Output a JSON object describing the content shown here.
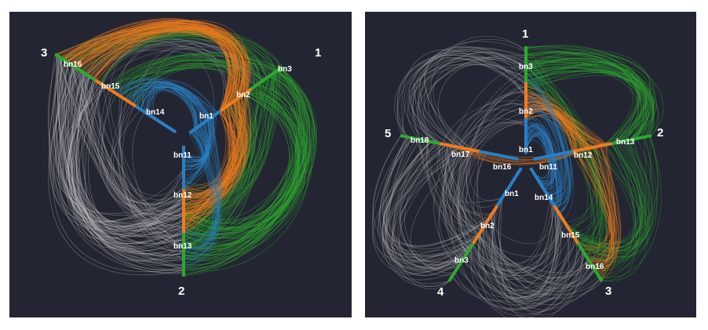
{
  "colors": {
    "background": "#232632",
    "blue": "#2a7fc4",
    "orange": "#f07c1e",
    "green": "#2fa82f",
    "gray": "#c8c8c8"
  },
  "left_panel": {
    "axis_numbers": [
      "1",
      "2",
      "3"
    ],
    "labels": {
      "bn1": "bn1",
      "bn2": "bn2",
      "bn3": "bn3",
      "bn11": "bn11",
      "bn12": "bn12",
      "bn13": "bn13",
      "bn14": "bn14",
      "bn15": "bn15",
      "bn16": "bn16"
    }
  },
  "right_panel": {
    "axis_numbers": [
      "1",
      "2",
      "3",
      "4",
      "5"
    ],
    "labels": {
      "a1_bn1": "bn1",
      "a1_bn2": "bn2",
      "a1_bn3": "bn3",
      "a2_bn11": "bn11",
      "a2_bn12": "bn12",
      "a2_bn13": "bn13",
      "a3_bn14": "bn14",
      "a3_bn15": "bn15",
      "a3_bn16": "bn16",
      "a4_bn1": "bn1",
      "a4_bn2": "bn2",
      "a4_bn3": "bn3",
      "a5_bn16": "bn16",
      "a5_bn17": "bn17",
      "a5_bn18": "bn18"
    }
  }
}
